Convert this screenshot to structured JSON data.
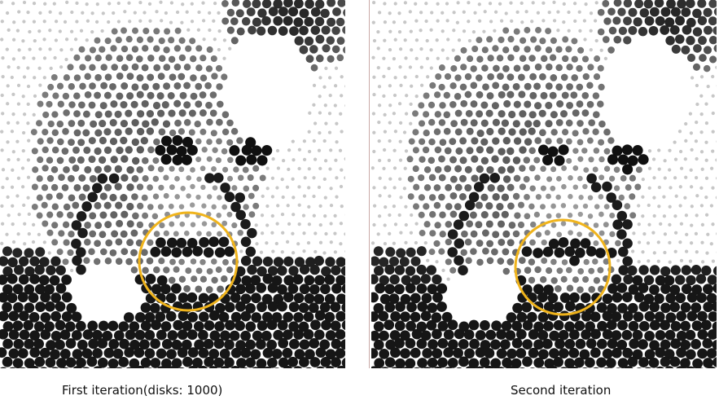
{
  "figure": {
    "panels": [
      {
        "caption": "First iteration(disks: 1000)",
        "highlight_color": "#f0b41c"
      },
      {
        "caption": "Second iteration",
        "highlight_color": "#f0b41c"
      }
    ]
  }
}
